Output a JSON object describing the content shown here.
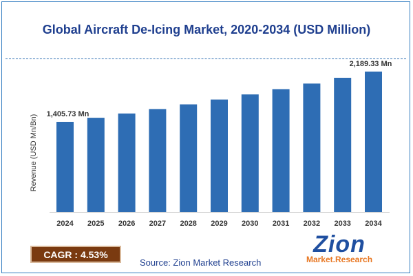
{
  "chart_data": {
    "type": "bar",
    "title": "Global Aircraft De-Icing Market, 2020-2034 (USD Million)",
    "ylabel": "Revenue (USD Mn/Bn)",
    "xlabel": "",
    "categories": [
      "2024",
      "2025",
      "2026",
      "2027",
      "2028",
      "2029",
      "2030",
      "2031",
      "2032",
      "2033",
      "2034"
    ],
    "values": [
      1405.73,
      1469.3,
      1535.8,
      1605.3,
      1677.9,
      1753.8,
      1833.1,
      1916.0,
      2002.6,
      2093.2,
      2189.33
    ],
    "data_labels": [
      {
        "category": "2024",
        "text": "1,405.73 Mn"
      },
      {
        "category": "2034",
        "text": "2,189.33 Mn"
      }
    ],
    "bar_color": "#2e6db4",
    "grid": false
  },
  "footer": {
    "cagr_label": "CAGR :  4.53%",
    "source": "Source: Zion Market Research",
    "logo_main": "Zion",
    "logo_sub": "Market.Research"
  },
  "colors": {
    "title": "#1f3f8f",
    "cagr_bg": "#7a3a10",
    "logo_blue": "#1f4fa0",
    "logo_orange": "#e87722"
  }
}
